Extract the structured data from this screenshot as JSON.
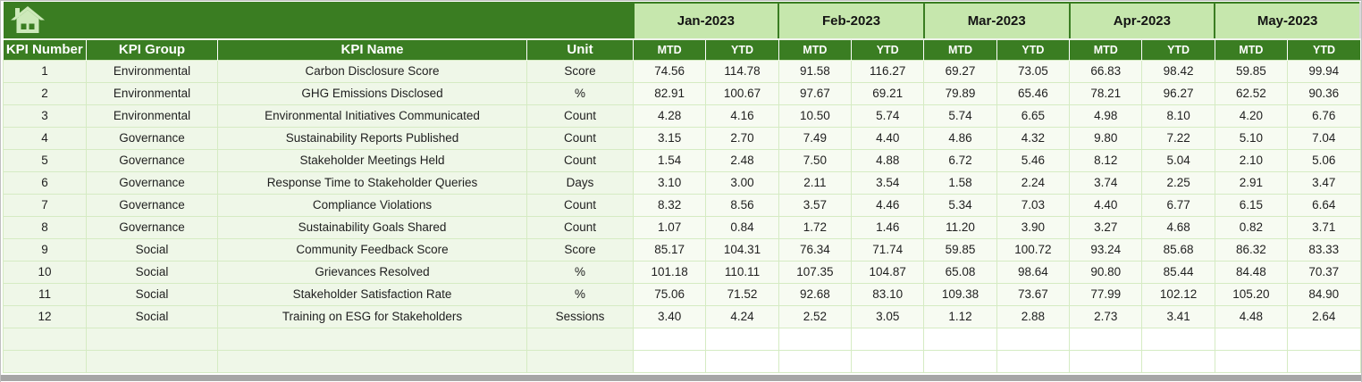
{
  "table": {
    "left_headers": [
      "KPI Number",
      "KPI Group",
      "KPI Name",
      "Unit"
    ],
    "months": [
      "Jan-2023",
      "Feb-2023",
      "Mar-2023",
      "Apr-2023",
      "May-2023"
    ],
    "sub_headers": [
      "MTD",
      "YTD"
    ],
    "rows": [
      {
        "kpi_number": "1",
        "kpi_group": "Environmental",
        "kpi_name": "Carbon Disclosure Score",
        "unit": "Score",
        "values": [
          "74.56",
          "114.78",
          "91.58",
          "116.27",
          "69.27",
          "73.05",
          "66.83",
          "98.42",
          "59.85",
          "99.94"
        ]
      },
      {
        "kpi_number": "2",
        "kpi_group": "Environmental",
        "kpi_name": "GHG Emissions Disclosed",
        "unit": "%",
        "values": [
          "82.91",
          "100.67",
          "97.67",
          "69.21",
          "79.89",
          "65.46",
          "78.21",
          "96.27",
          "62.52",
          "90.36"
        ]
      },
      {
        "kpi_number": "3",
        "kpi_group": "Environmental",
        "kpi_name": "Environmental Initiatives Communicated",
        "unit": "Count",
        "values": [
          "4.28",
          "4.16",
          "10.50",
          "5.74",
          "5.74",
          "6.65",
          "4.98",
          "8.10",
          "4.20",
          "6.76"
        ]
      },
      {
        "kpi_number": "4",
        "kpi_group": "Governance",
        "kpi_name": "Sustainability Reports Published",
        "unit": "Count",
        "values": [
          "3.15",
          "2.70",
          "7.49",
          "4.40",
          "4.86",
          "4.32",
          "9.80",
          "7.22",
          "5.10",
          "7.04"
        ]
      },
      {
        "kpi_number": "5",
        "kpi_group": "Governance",
        "kpi_name": "Stakeholder Meetings Held",
        "unit": "Count",
        "values": [
          "1.54",
          "2.48",
          "7.50",
          "4.88",
          "6.72",
          "5.46",
          "8.12",
          "5.04",
          "2.10",
          "5.06"
        ]
      },
      {
        "kpi_number": "6",
        "kpi_group": "Governance",
        "kpi_name": "Response Time to Stakeholder Queries",
        "unit": "Days",
        "values": [
          "3.10",
          "3.00",
          "2.11",
          "3.54",
          "1.58",
          "2.24",
          "3.74",
          "2.25",
          "2.91",
          "3.47"
        ]
      },
      {
        "kpi_number": "7",
        "kpi_group": "Governance",
        "kpi_name": "Compliance Violations",
        "unit": "Count",
        "values": [
          "8.32",
          "8.56",
          "3.57",
          "4.46",
          "5.34",
          "7.03",
          "4.40",
          "6.77",
          "6.15",
          "6.64"
        ]
      },
      {
        "kpi_number": "8",
        "kpi_group": "Governance",
        "kpi_name": "Sustainability Goals Shared",
        "unit": "Count",
        "values": [
          "1.07",
          "0.84",
          "1.72",
          "1.46",
          "11.20",
          "3.90",
          "3.27",
          "4.68",
          "0.82",
          "3.71"
        ]
      },
      {
        "kpi_number": "9",
        "kpi_group": "Social",
        "kpi_name": "Community Feedback Score",
        "unit": "Score",
        "values": [
          "85.17",
          "104.31",
          "76.34",
          "71.74",
          "59.85",
          "100.72",
          "93.24",
          "85.68",
          "86.32",
          "83.33"
        ]
      },
      {
        "kpi_number": "10",
        "kpi_group": "Social",
        "kpi_name": "Grievances Resolved",
        "unit": "%",
        "values": [
          "101.18",
          "110.11",
          "107.35",
          "104.87",
          "65.08",
          "98.64",
          "90.80",
          "85.44",
          "84.48",
          "70.37"
        ]
      },
      {
        "kpi_number": "11",
        "kpi_group": "Social",
        "kpi_name": "Stakeholder Satisfaction Rate",
        "unit": "%",
        "values": [
          "75.06",
          "71.52",
          "92.68",
          "83.10",
          "109.38",
          "73.67",
          "77.99",
          "102.12",
          "105.20",
          "84.90"
        ]
      },
      {
        "kpi_number": "12",
        "kpi_group": "Social",
        "kpi_name": "Training on ESG for Stakeholders",
        "unit": "Sessions",
        "values": [
          "3.40",
          "4.24",
          "2.52",
          "3.05",
          "1.12",
          "2.88",
          "2.73",
          "3.41",
          "4.48",
          "2.64"
        ]
      }
    ],
    "empty_row_count": 2
  },
  "icons": {
    "home": "home-icon"
  },
  "colors": {
    "header_green": "#3A7D22",
    "month_band_green": "#C6E7AD",
    "row_left_bg": "#EFF7E8",
    "row_value_bg": "#F7FBF2",
    "grid_line": "#D5EBC3",
    "body_text": "#1F1F1F",
    "header_text": "#FFFFFF",
    "empty_value_bg": "#FFFFFF",
    "scrollbar_gray": "#A6A6A6",
    "icon_green": "#CDE9BA"
  }
}
